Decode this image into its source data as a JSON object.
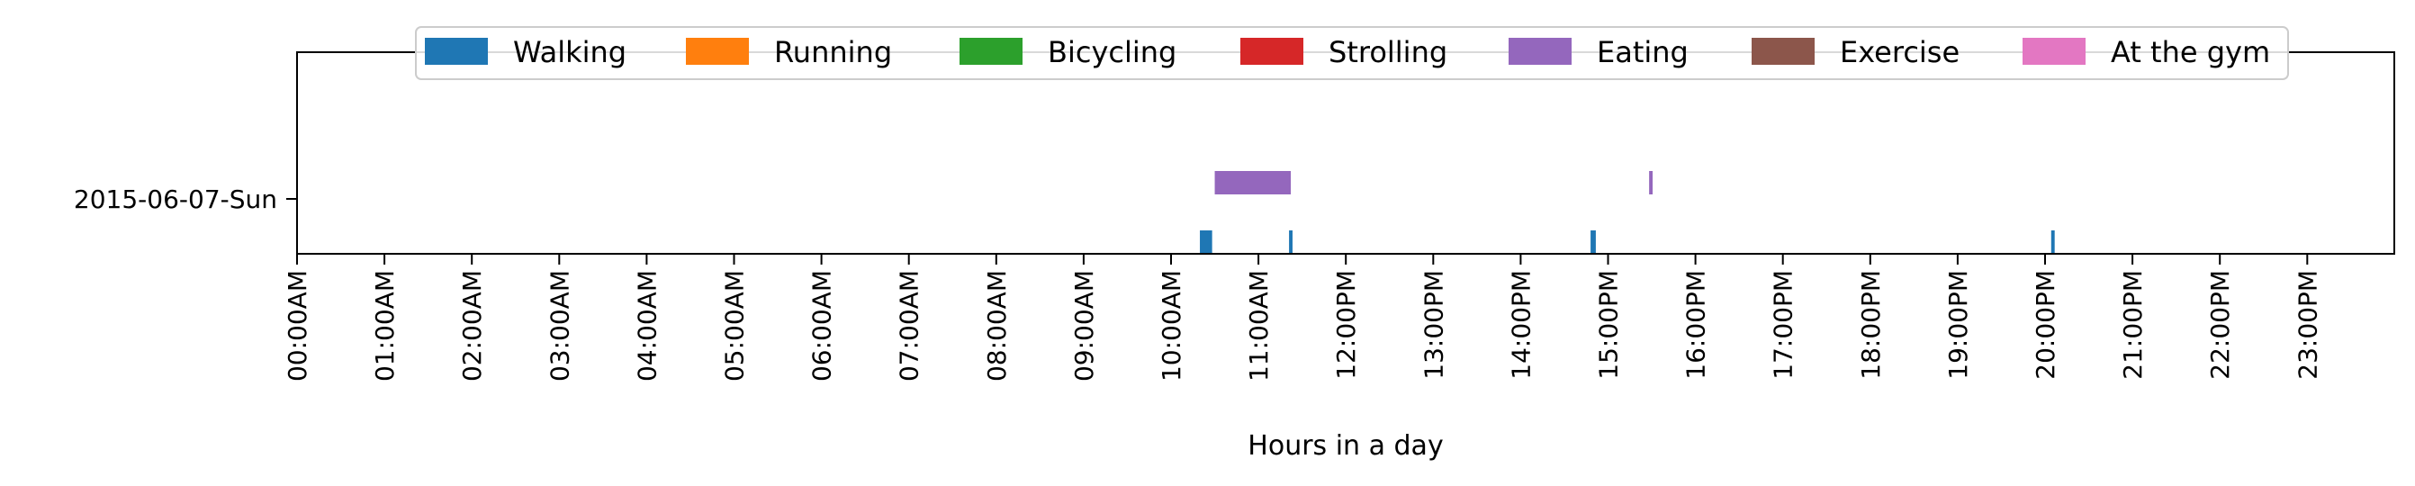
{
  "chart_data": {
    "type": "timeline",
    "xlabel": "Hours in a day",
    "xlim": [
      0,
      24
    ],
    "x_ticks": [
      "00:00AM",
      "01:00AM",
      "02:00AM",
      "03:00AM",
      "04:00AM",
      "05:00AM",
      "06:00AM",
      "07:00AM",
      "08:00AM",
      "09:00AM",
      "10:00AM",
      "11:00AM",
      "12:00PM",
      "13:00PM",
      "14:00PM",
      "15:00PM",
      "16:00PM",
      "17:00PM",
      "18:00PM",
      "19:00PM",
      "20:00PM",
      "21:00PM",
      "22:00PM",
      "23:00PM"
    ],
    "rows": [
      "2015-06-07-Sun"
    ],
    "legend": {
      "position": "top-center",
      "entries": [
        {
          "name": "Walking",
          "color": "#1f77b4"
        },
        {
          "name": "Running",
          "color": "#ff7f0e"
        },
        {
          "name": "Bicycling",
          "color": "#2ca02c"
        },
        {
          "name": "Strolling",
          "color": "#d62728"
        },
        {
          "name": "Eating",
          "color": "#9467bd"
        },
        {
          "name": "Exercise",
          "color": "#8c564b"
        },
        {
          "name": "At the gym",
          "color": "#e377c2"
        }
      ]
    },
    "series": [
      {
        "name": "Walking",
        "color": "#1f77b4",
        "lane": "lower",
        "intervals": [
          [
            10.33,
            10.47
          ],
          [
            11.35,
            11.39
          ],
          [
            14.8,
            14.86
          ],
          [
            20.07,
            20.11
          ]
        ]
      },
      {
        "name": "Eating",
        "color": "#9467bd",
        "lane": "upper",
        "intervals": [
          [
            10.5,
            11.37
          ],
          [
            15.47,
            15.51
          ]
        ]
      }
    ]
  }
}
